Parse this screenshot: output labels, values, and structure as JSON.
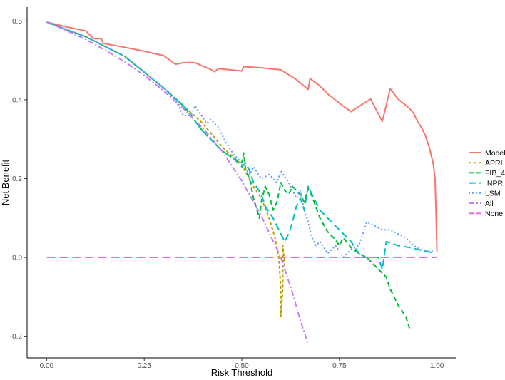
{
  "chart_data": {
    "type": "line",
    "title": "",
    "xlabel": "Risk Threshold",
    "ylabel": "Net Benefit",
    "xlim": [
      -0.05,
      1.05
    ],
    "ylim": [
      -0.255,
      0.635
    ],
    "xticks": [
      {
        "value": 0.0,
        "label": "0.00"
      },
      {
        "value": 0.25,
        "label": "0.25"
      },
      {
        "value": 0.5,
        "label": "0.50"
      },
      {
        "value": 0.75,
        "label": "0.75"
      },
      {
        "value": 1.0,
        "label": "1.00"
      }
    ],
    "yticks": [
      {
        "value": -0.2,
        "label": "-0.2"
      },
      {
        "value": 0.0,
        "label": "0.0"
      },
      {
        "value": 0.2,
        "label": "0.2"
      },
      {
        "value": 0.4,
        "label": "0.4"
      },
      {
        "value": 0.6,
        "label": "0.6"
      }
    ],
    "grid": false,
    "legend_position": "right",
    "series": [
      {
        "name": "Model",
        "color": "#F8766D",
        "dash": "solid",
        "points": [
          [
            0.0,
            0.597
          ],
          [
            0.05,
            0.585
          ],
          [
            0.1,
            0.575
          ],
          [
            0.12,
            0.555
          ],
          [
            0.14,
            0.555
          ],
          [
            0.145,
            0.543
          ],
          [
            0.2,
            0.533
          ],
          [
            0.25,
            0.523
          ],
          [
            0.3,
            0.512
          ],
          [
            0.33,
            0.49
          ],
          [
            0.35,
            0.494
          ],
          [
            0.38,
            0.494
          ],
          [
            0.42,
            0.477
          ],
          [
            0.43,
            0.471
          ],
          [
            0.44,
            0.479
          ],
          [
            0.5,
            0.473
          ],
          [
            0.505,
            0.484
          ],
          [
            0.55,
            0.481
          ],
          [
            0.6,
            0.476
          ],
          [
            0.64,
            0.451
          ],
          [
            0.67,
            0.426
          ],
          [
            0.675,
            0.454
          ],
          [
            0.7,
            0.435
          ],
          [
            0.72,
            0.415
          ],
          [
            0.76,
            0.384
          ],
          [
            0.78,
            0.37
          ],
          [
            0.8,
            0.383
          ],
          [
            0.83,
            0.402
          ],
          [
            0.86,
            0.345
          ],
          [
            0.88,
            0.428
          ],
          [
            0.9,
            0.402
          ],
          [
            0.92,
            0.386
          ],
          [
            0.93,
            0.378
          ],
          [
            0.94,
            0.366
          ],
          [
            0.95,
            0.345
          ],
          [
            0.96,
            0.33
          ],
          [
            0.97,
            0.31
          ],
          [
            0.98,
            0.28
          ],
          [
            0.99,
            0.24
          ],
          [
            0.995,
            0.2
          ],
          [
            0.998,
            0.1
          ],
          [
            1.0,
            0.015
          ]
        ]
      },
      {
        "name": "APRI",
        "color": "#B79F00",
        "dash": "4,3",
        "points": [
          [
            0.0,
            0.597
          ],
          [
            0.1,
            0.56
          ],
          [
            0.2,
            0.51
          ],
          [
            0.3,
            0.43
          ],
          [
            0.35,
            0.385
          ],
          [
            0.4,
            0.34
          ],
          [
            0.45,
            0.28
          ],
          [
            0.5,
            0.235
          ],
          [
            0.53,
            0.18
          ],
          [
            0.55,
            0.15
          ],
          [
            0.57,
            0.1
          ],
          [
            0.585,
            0.05
          ],
          [
            0.595,
            0.0
          ],
          [
            0.6,
            -0.08
          ],
          [
            0.6,
            -0.15
          ],
          [
            0.605,
            -0.08
          ],
          [
            0.605,
            0.03
          ],
          [
            0.61,
            -0.02
          ]
        ]
      },
      {
        "name": "FIB_4",
        "color": "#00BA38",
        "dash": "7,4",
        "points": [
          [
            0.0,
            0.597
          ],
          [
            0.1,
            0.56
          ],
          [
            0.2,
            0.51
          ],
          [
            0.3,
            0.43
          ],
          [
            0.35,
            0.385
          ],
          [
            0.4,
            0.32
          ],
          [
            0.45,
            0.27
          ],
          [
            0.48,
            0.25
          ],
          [
            0.5,
            0.24
          ],
          [
            0.505,
            0.265
          ],
          [
            0.51,
            0.22
          ],
          [
            0.52,
            0.2
          ],
          [
            0.53,
            0.15
          ],
          [
            0.545,
            0.1
          ],
          [
            0.55,
            0.14
          ],
          [
            0.56,
            0.18
          ],
          [
            0.57,
            0.16
          ],
          [
            0.58,
            0.12
          ],
          [
            0.59,
            0.14
          ],
          [
            0.6,
            0.19
          ],
          [
            0.61,
            0.17
          ],
          [
            0.62,
            0.16
          ],
          [
            0.63,
            0.18
          ],
          [
            0.64,
            0.17
          ],
          [
            0.65,
            0.16
          ],
          [
            0.66,
            0.14
          ],
          [
            0.67,
            0.175
          ],
          [
            0.68,
            0.155
          ],
          [
            0.7,
            0.1
          ],
          [
            0.72,
            0.065
          ],
          [
            0.74,
            0.045
          ],
          [
            0.75,
            0.03
          ],
          [
            0.76,
            0.05
          ],
          [
            0.78,
            0.025
          ],
          [
            0.8,
            0.01
          ],
          [
            0.82,
            0.0
          ],
          [
            0.85,
            -0.03
          ],
          [
            0.87,
            -0.05
          ],
          [
            0.88,
            -0.08
          ],
          [
            0.9,
            -0.12
          ],
          [
            0.92,
            -0.15
          ],
          [
            0.93,
            -0.18
          ]
        ]
      },
      {
        "name": "INPR",
        "color": "#00BFC4",
        "dash": "10,5",
        "points": [
          [
            0.0,
            0.597
          ],
          [
            0.1,
            0.56
          ],
          [
            0.2,
            0.51
          ],
          [
            0.3,
            0.43
          ],
          [
            0.35,
            0.385
          ],
          [
            0.4,
            0.32
          ],
          [
            0.45,
            0.27
          ],
          [
            0.48,
            0.25
          ],
          [
            0.5,
            0.23
          ],
          [
            0.51,
            0.24
          ],
          [
            0.52,
            0.22
          ],
          [
            0.53,
            0.19
          ],
          [
            0.55,
            0.16
          ],
          [
            0.56,
            0.13
          ],
          [
            0.58,
            0.1
          ],
          [
            0.6,
            0.06
          ],
          [
            0.61,
            0.04
          ],
          [
            0.62,
            0.06
          ],
          [
            0.63,
            0.09
          ],
          [
            0.64,
            0.13
          ],
          [
            0.65,
            0.15
          ],
          [
            0.66,
            0.12
          ],
          [
            0.67,
            0.18
          ],
          [
            0.68,
            0.16
          ],
          [
            0.7,
            0.12
          ],
          [
            0.72,
            0.1
          ],
          [
            0.74,
            0.08
          ],
          [
            0.76,
            0.06
          ],
          [
            0.78,
            0.04
          ],
          [
            0.8,
            0.01
          ],
          [
            0.81,
            0.0
          ],
          [
            0.83,
            0.0
          ],
          [
            0.85,
            0.0
          ],
          [
            0.86,
            -0.03
          ],
          [
            0.87,
            0.04
          ],
          [
            0.9,
            0.03
          ],
          [
            0.93,
            0.025
          ],
          [
            0.96,
            0.018
          ],
          [
            0.99,
            0.012
          ]
        ]
      },
      {
        "name": "LSM",
        "color": "#619CFF",
        "dash": "2,3",
        "points": [
          [
            0.0,
            0.597
          ],
          [
            0.1,
            0.56
          ],
          [
            0.2,
            0.51
          ],
          [
            0.3,
            0.43
          ],
          [
            0.33,
            0.4
          ],
          [
            0.35,
            0.36
          ],
          [
            0.37,
            0.36
          ],
          [
            0.38,
            0.385
          ],
          [
            0.39,
            0.37
          ],
          [
            0.41,
            0.34
          ],
          [
            0.42,
            0.35
          ],
          [
            0.44,
            0.33
          ],
          [
            0.46,
            0.29
          ],
          [
            0.48,
            0.26
          ],
          [
            0.5,
            0.24
          ],
          [
            0.52,
            0.21
          ],
          [
            0.53,
            0.23
          ],
          [
            0.55,
            0.2
          ],
          [
            0.57,
            0.21
          ],
          [
            0.59,
            0.19
          ],
          [
            0.6,
            0.22
          ],
          [
            0.62,
            0.19
          ],
          [
            0.64,
            0.15
          ],
          [
            0.65,
            0.17
          ],
          [
            0.66,
            0.12
          ],
          [
            0.67,
            0.09
          ],
          [
            0.68,
            0.05
          ],
          [
            0.69,
            0.03
          ],
          [
            0.7,
            0.04
          ],
          [
            0.72,
            0.01
          ],
          [
            0.74,
            0.03
          ],
          [
            0.76,
            0.0
          ],
          [
            0.78,
            0.02
          ],
          [
            0.8,
            0.03
          ],
          [
            0.81,
            0.06
          ],
          [
            0.82,
            0.09
          ],
          [
            0.84,
            0.08
          ],
          [
            0.86,
            0.07
          ],
          [
            0.88,
            0.07
          ],
          [
            0.9,
            0.06
          ],
          [
            0.92,
            0.05
          ],
          [
            0.94,
            0.03
          ],
          [
            0.96,
            0.02
          ],
          [
            0.99,
            0.015
          ]
        ]
      },
      {
        "name": "All",
        "color": "#C77CFF",
        "dash": "8,3,2,3",
        "points": [
          [
            0.0,
            0.597
          ],
          [
            0.05,
            0.576
          ],
          [
            0.1,
            0.553
          ],
          [
            0.15,
            0.526
          ],
          [
            0.2,
            0.496
          ],
          [
            0.25,
            0.462
          ],
          [
            0.3,
            0.423
          ],
          [
            0.35,
            0.378
          ],
          [
            0.4,
            0.328
          ],
          [
            0.45,
            0.269
          ],
          [
            0.5,
            0.194
          ],
          [
            0.55,
            0.105
          ],
          [
            0.6,
            0.0
          ],
          [
            0.63,
            -0.09
          ],
          [
            0.65,
            -0.16
          ],
          [
            0.67,
            -0.22
          ]
        ]
      },
      {
        "name": "None",
        "color": "#F564E3",
        "dash": "12,6",
        "points": [
          [
            0.0,
            0.0
          ],
          [
            1.0,
            0.0
          ]
        ]
      }
    ]
  }
}
